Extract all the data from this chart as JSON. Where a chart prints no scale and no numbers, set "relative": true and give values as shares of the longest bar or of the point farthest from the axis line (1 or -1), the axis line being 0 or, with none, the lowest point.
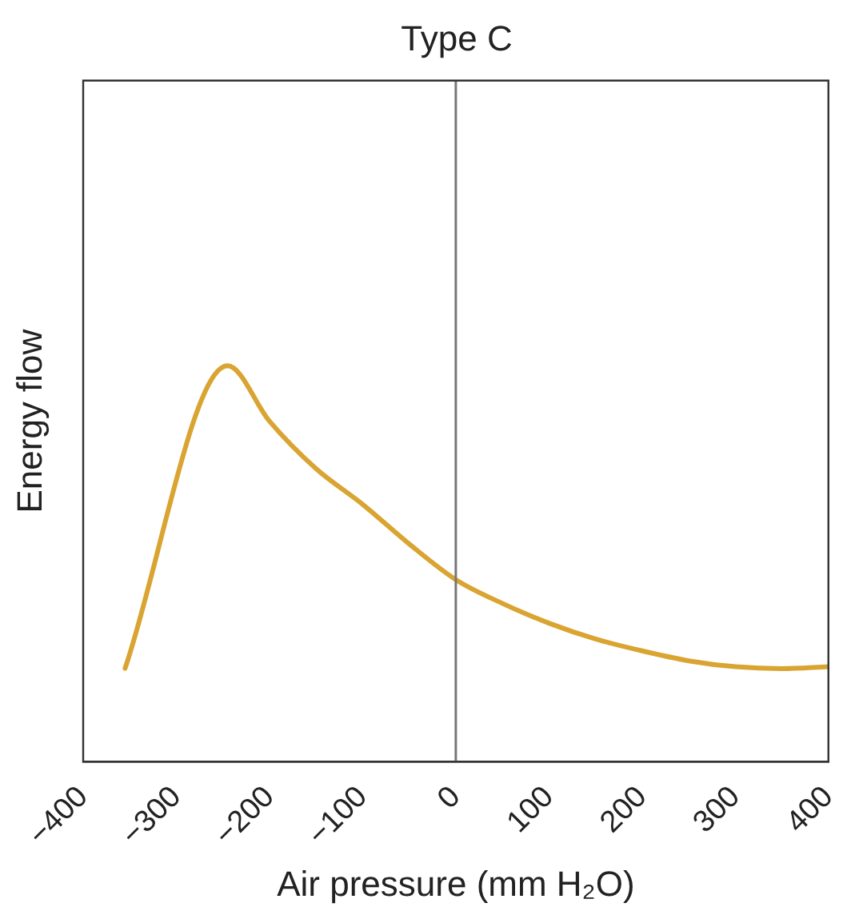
{
  "chart_data": {
    "type": "line",
    "title": "Type C",
    "xlabel": "Air pressure (mm H₂O)",
    "ylabel": "Energy flow",
    "relative": true,
    "x": [
      -355,
      -245,
      -200,
      -150,
      -100,
      -50,
      0,
      50,
      100,
      150,
      200,
      250,
      300,
      350,
      400
    ],
    "series": [
      {
        "color": "#d9a431",
        "values": [
          0.236,
          1,
          0.86,
          0.74,
          0.65,
          0.55,
          0.46,
          0.4,
          0.35,
          0.31,
          0.28,
          0.255,
          0.24,
          0.235,
          0.24
        ]
      }
    ],
    "xlim": [
      -400,
      400
    ],
    "xticks": [
      {
        "value": -400,
        "label": "−400"
      },
      {
        "value": -300,
        "label": "−300"
      },
      {
        "value": -200,
        "label": "−200"
      },
      {
        "value": -100,
        "label": "−100"
      },
      0,
      100,
      200,
      300,
      400
    ],
    "ref_lines": [
      {
        "axis": "x",
        "value": 0,
        "color": "#777777"
      }
    ],
    "grid": false,
    "legend": false,
    "marker": "none",
    "line_style": "solid"
  }
}
